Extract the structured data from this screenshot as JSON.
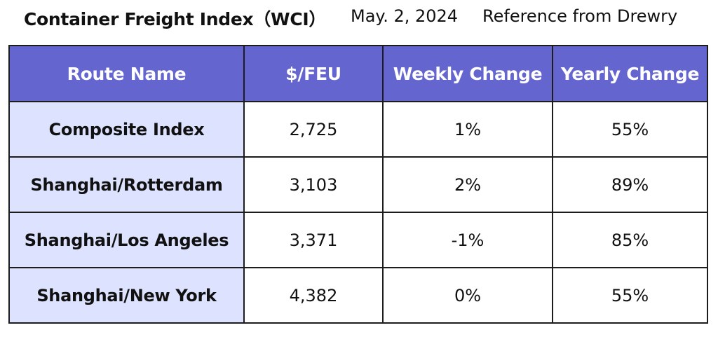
{
  "header": {
    "title": "Container Freight Index（WCI）",
    "date": "May. 2, 2024",
    "reference": "Reference from Drewry"
  },
  "table": {
    "columns": [
      "Route Name",
      "$/FEU",
      "Weekly Change",
      "Yearly Change"
    ],
    "rows": [
      {
        "route": "Composite Index",
        "feu": "2,725",
        "weekly": "1%",
        "yearly": "55%"
      },
      {
        "route": "Shanghai/Rotterdam",
        "feu": "3,103",
        "weekly": "2%",
        "yearly": "89%"
      },
      {
        "route": "Shanghai/Los Angeles",
        "feu": "3,371",
        "weekly": "-1%",
        "yearly": "85%"
      },
      {
        "route": "Shanghai/New York",
        "feu": "4,382",
        "weekly": "0%",
        "yearly": "55%"
      }
    ]
  },
  "colors": {
    "header_bg": "#6565cf",
    "header_text": "#ffffff",
    "route_cell_bg": "#dde3ff",
    "border": "#1c1c1c"
  }
}
